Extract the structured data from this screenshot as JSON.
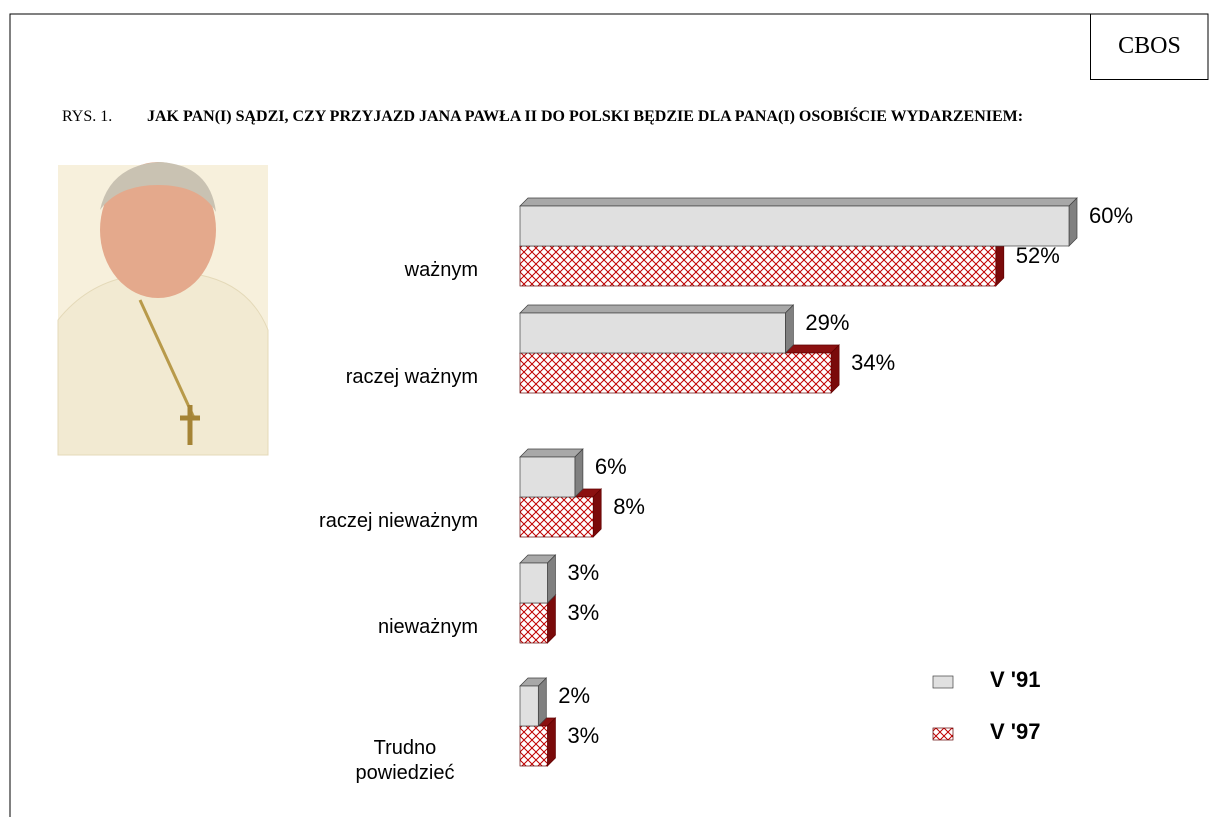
{
  "header": {
    "badge": "CBOS",
    "figure_label": "RYS. 1.",
    "title": "JAK PAN(I) SĄDZI, CZY PRZYJAZD JANA PAWŁA II DO POLSKI BĘDZIE DLA PANA(I) OSOBIŚCIE WYDARZENIEM:"
  },
  "chart_data": {
    "type": "bar",
    "orientation": "horizontal",
    "categories": [
      "ważnym",
      "raczej ważnym",
      "raczej nieważnym",
      "nieważnym",
      "Trudno powiedzieć"
    ],
    "series": [
      {
        "name": "V '91",
        "color": "#e0e0e0",
        "values": [
          60,
          29,
          6,
          3,
          2
        ],
        "value_labels": [
          "60%",
          "29%",
          "6%",
          "3%",
          "2%"
        ]
      },
      {
        "name": "V '97",
        "color": "#c00000",
        "values": [
          52,
          34,
          8,
          3,
          3
        ],
        "value_labels": [
          "52%",
          "34%",
          "8%",
          "3%",
          "3%"
        ]
      }
    ]
  }
}
